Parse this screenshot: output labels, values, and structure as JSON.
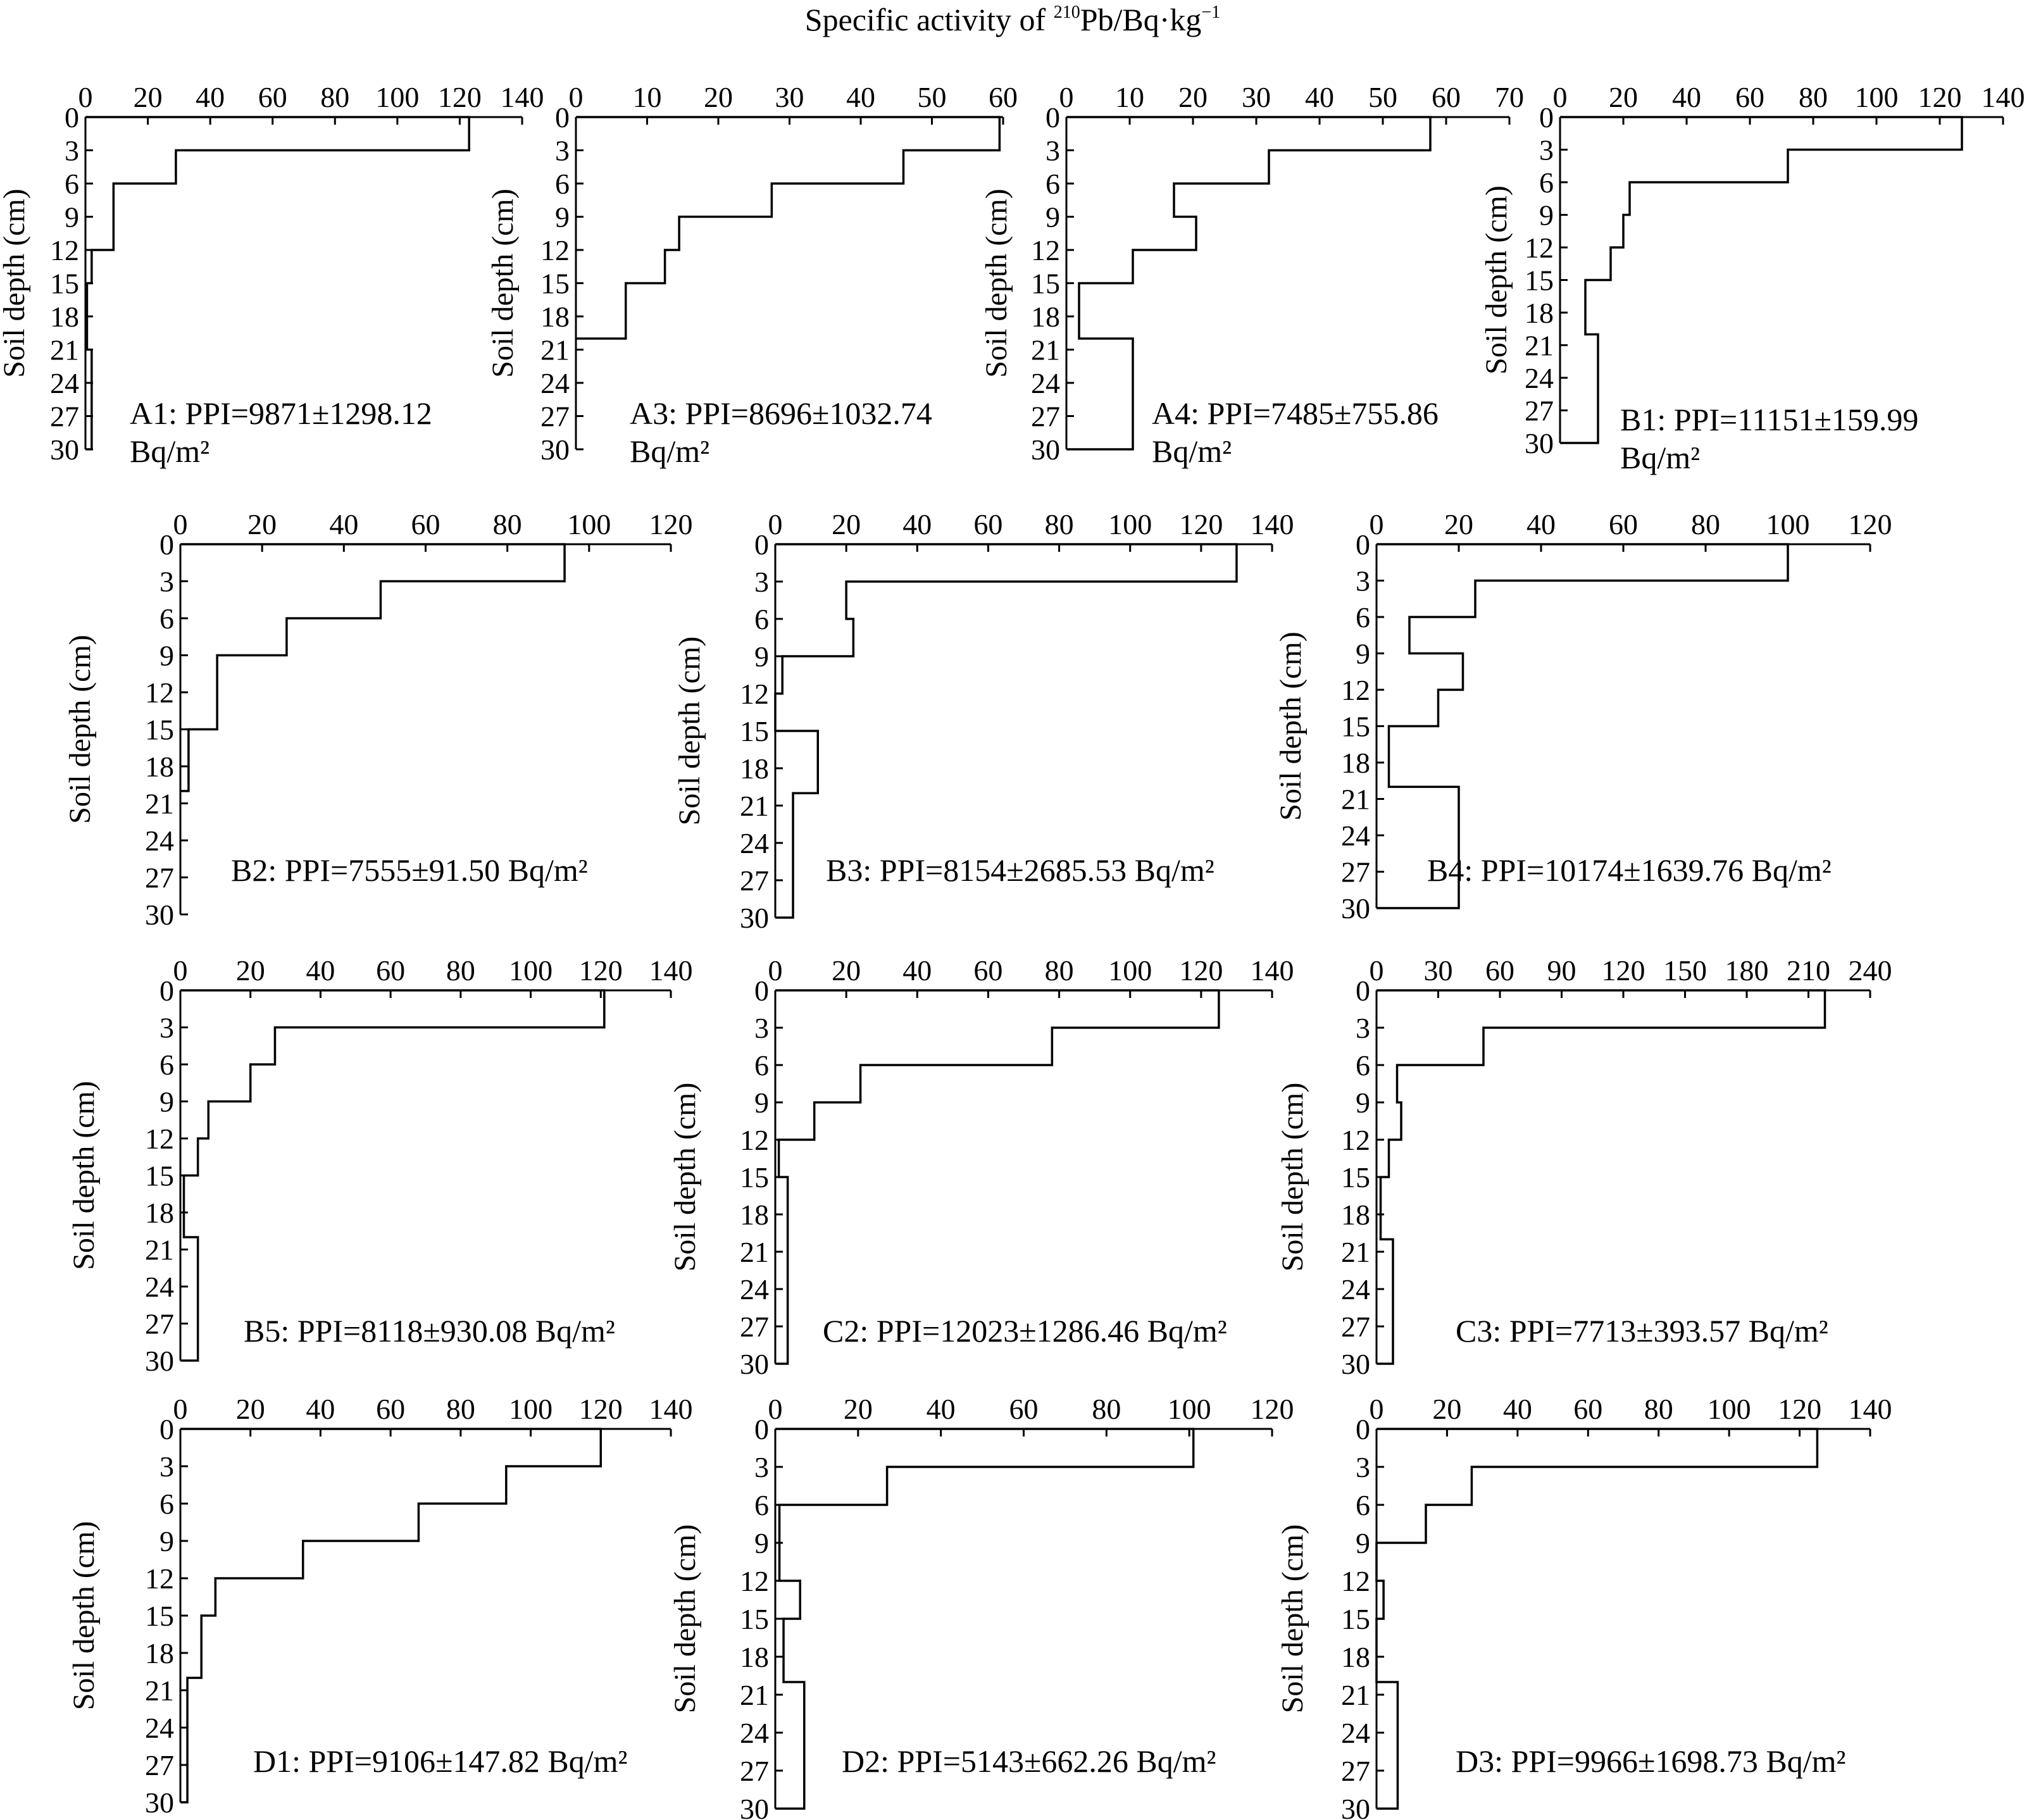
{
  "figure": {
    "title": {
      "prefix": "Specific activity of ",
      "sup1": "210",
      "mid": "Pb/Bq·kg",
      "sup2": "−1"
    }
  },
  "chart_data": [
    {
      "type": "line",
      "panel": "A1",
      "ylabel": "Soil depth (cm)",
      "xlim": [
        0,
        140
      ],
      "xticks": [
        0,
        20,
        40,
        60,
        80,
        100,
        120,
        140
      ],
      "ylim": [
        0,
        30
      ],
      "yticks": [
        0,
        3,
        6,
        9,
        12,
        15,
        18,
        21,
        24,
        27,
        30
      ],
      "annotation": [
        "A1: PPI=9871±1298.12",
        "Bq/m²"
      ],
      "layers": [
        {
          "top": 0,
          "bottom": 3,
          "value": 123
        },
        {
          "top": 3,
          "bottom": 6,
          "value": 29
        },
        {
          "top": 6,
          "bottom": 12,
          "value": 9
        },
        {
          "top": 12,
          "bottom": 15,
          "value": 2
        },
        {
          "top": 15,
          "bottom": 21,
          "value": 0.5
        },
        {
          "top": 21,
          "bottom": 30,
          "value": 2
        }
      ]
    },
    {
      "type": "line",
      "panel": "A3",
      "ylabel": "Soil depth (cm)",
      "xlim": [
        0,
        60
      ],
      "xticks": [
        0,
        10,
        20,
        30,
        40,
        50,
        60
      ],
      "ylim": [
        0,
        30
      ],
      "yticks": [
        0,
        3,
        6,
        9,
        12,
        15,
        18,
        21,
        24,
        27,
        30
      ],
      "annotation": [
        "A3: PPI=8696±1032.74",
        "Bq/m²"
      ],
      "layers": [
        {
          "top": 0,
          "bottom": 3,
          "value": 59.5
        },
        {
          "top": 3,
          "bottom": 6,
          "value": 46
        },
        {
          "top": 6,
          "bottom": 9,
          "value": 27.5
        },
        {
          "top": 9,
          "bottom": 12,
          "value": 14.5
        },
        {
          "top": 12,
          "bottom": 15,
          "value": 12.5
        },
        {
          "top": 15,
          "bottom": 20,
          "value": 7
        }
      ]
    },
    {
      "type": "line",
      "panel": "A4",
      "ylabel": "Soil depth (cm)",
      "xlim": [
        0,
        70
      ],
      "xticks": [
        0,
        10,
        20,
        30,
        40,
        50,
        60,
        70
      ],
      "ylim": [
        0,
        30
      ],
      "yticks": [
        0,
        3,
        6,
        9,
        12,
        15,
        18,
        21,
        24,
        27,
        30
      ],
      "annotation": [
        "A4: PPI=7485±755.86",
        "Bq/m²"
      ],
      "layers": [
        {
          "top": 0,
          "bottom": 3,
          "value": 57.5
        },
        {
          "top": 3,
          "bottom": 6,
          "value": 32
        },
        {
          "top": 6,
          "bottom": 9,
          "value": 17
        },
        {
          "top": 9,
          "bottom": 12,
          "value": 20.5
        },
        {
          "top": 12,
          "bottom": 15,
          "value": 10.5
        },
        {
          "top": 15,
          "bottom": 20,
          "value": 2
        },
        {
          "top": 20,
          "bottom": 30,
          "value": 10.5
        }
      ]
    },
    {
      "type": "line",
      "panel": "B1",
      "ylabel": "Soil depth (cm)",
      "xlim": [
        0,
        140
      ],
      "xticks": [
        0,
        20,
        40,
        60,
        80,
        100,
        120,
        140
      ],
      "ylim": [
        0,
        30
      ],
      "yticks": [
        0,
        3,
        6,
        9,
        12,
        15,
        18,
        21,
        24,
        27,
        30
      ],
      "annotation": [
        "B1: PPI=11151±159.99",
        "Bq/m²"
      ],
      "layers": [
        {
          "top": 0,
          "bottom": 3,
          "value": 127
        },
        {
          "top": 3,
          "bottom": 6,
          "value": 72
        },
        {
          "top": 6,
          "bottom": 9,
          "value": 22
        },
        {
          "top": 9,
          "bottom": 12,
          "value": 20
        },
        {
          "top": 12,
          "bottom": 15,
          "value": 16
        },
        {
          "top": 15,
          "bottom": 20,
          "value": 8
        },
        {
          "top": 20,
          "bottom": 30,
          "value": 12
        }
      ]
    },
    {
      "type": "line",
      "panel": "B2",
      "ylabel": "Soil depth (cm)",
      "xlim": [
        0,
        120
      ],
      "xticks": [
        0,
        20,
        40,
        60,
        80,
        100,
        120
      ],
      "ylim": [
        0,
        30
      ],
      "yticks": [
        0,
        3,
        6,
        9,
        12,
        15,
        18,
        21,
        24,
        27,
        30
      ],
      "annotation": [
        "B2: PPI=7555±91.50 Bq/m²"
      ],
      "layers": [
        {
          "top": 0,
          "bottom": 3,
          "value": 94
        },
        {
          "top": 3,
          "bottom": 6,
          "value": 49
        },
        {
          "top": 6,
          "bottom": 9,
          "value": 26
        },
        {
          "top": 9,
          "bottom": 15,
          "value": 9
        },
        {
          "top": 15,
          "bottom": 20,
          "value": 2
        }
      ]
    },
    {
      "type": "line",
      "panel": "B3",
      "ylabel": "Soil depth (cm)",
      "xlim": [
        0,
        140
      ],
      "xticks": [
        0,
        20,
        40,
        60,
        80,
        100,
        120,
        140
      ],
      "ylim": [
        0,
        30
      ],
      "yticks": [
        0,
        3,
        6,
        9,
        12,
        15,
        18,
        21,
        24,
        27,
        30
      ],
      "annotation": [
        "B3: PPI=8154±2685.53 Bq/m²"
      ],
      "layers": [
        {
          "top": 0,
          "bottom": 3,
          "value": 130
        },
        {
          "top": 3,
          "bottom": 6,
          "value": 20
        },
        {
          "top": 6,
          "bottom": 9,
          "value": 22
        },
        {
          "top": 9,
          "bottom": 12,
          "value": 2
        },
        {
          "top": 12,
          "bottom": 15,
          "value": 0
        },
        {
          "top": 15,
          "bottom": 20,
          "value": 12
        },
        {
          "top": 20,
          "bottom": 30,
          "value": 5
        }
      ]
    },
    {
      "type": "line",
      "panel": "B4",
      "ylabel": "Soil depth (cm)",
      "xlim": [
        0,
        120
      ],
      "xticks": [
        0,
        20,
        40,
        60,
        80,
        100,
        120
      ],
      "ylim": [
        0,
        30
      ],
      "yticks": [
        0,
        3,
        6,
        9,
        12,
        15,
        18,
        21,
        24,
        27,
        30
      ],
      "annotation": [
        "B4: PPI=10174±1639.76 Bq/m²"
      ],
      "layers": [
        {
          "top": 0,
          "bottom": 3,
          "value": 100
        },
        {
          "top": 3,
          "bottom": 6,
          "value": 24
        },
        {
          "top": 6,
          "bottom": 9,
          "value": 8
        },
        {
          "top": 9,
          "bottom": 12,
          "value": 21
        },
        {
          "top": 12,
          "bottom": 15,
          "value": 15
        },
        {
          "top": 15,
          "bottom": 20,
          "value": 3
        },
        {
          "top": 20,
          "bottom": 30,
          "value": 20
        }
      ]
    },
    {
      "type": "line",
      "panel": "B5",
      "ylabel": "Soil depth (cm)",
      "xlim": [
        0,
        140
      ],
      "xticks": [
        0,
        20,
        40,
        60,
        80,
        100,
        120,
        140
      ],
      "ylim": [
        0,
        30
      ],
      "yticks": [
        0,
        3,
        6,
        9,
        12,
        15,
        18,
        21,
        24,
        27,
        30
      ],
      "annotation": [
        "B5: PPI=8118±930.08 Bq/m²"
      ],
      "layers": [
        {
          "top": 0,
          "bottom": 3,
          "value": 121
        },
        {
          "top": 3,
          "bottom": 6,
          "value": 27
        },
        {
          "top": 6,
          "bottom": 9,
          "value": 20
        },
        {
          "top": 9,
          "bottom": 12,
          "value": 8
        },
        {
          "top": 12,
          "bottom": 15,
          "value": 5
        },
        {
          "top": 15,
          "bottom": 20,
          "value": 1
        },
        {
          "top": 20,
          "bottom": 30,
          "value": 5
        }
      ]
    },
    {
      "type": "line",
      "panel": "C2",
      "ylabel": "Soil depth (cm)",
      "xlim": [
        0,
        140
      ],
      "xticks": [
        0,
        20,
        40,
        60,
        80,
        100,
        120,
        140
      ],
      "ylim": [
        0,
        30
      ],
      "yticks": [
        0,
        3,
        6,
        9,
        12,
        15,
        18,
        21,
        24,
        27,
        30
      ],
      "annotation": [
        "C2: PPI=12023±1286.46 Bq/m²"
      ],
      "layers": [
        {
          "top": 0,
          "bottom": 3,
          "value": 125
        },
        {
          "top": 3,
          "bottom": 6,
          "value": 78
        },
        {
          "top": 6,
          "bottom": 9,
          "value": 24
        },
        {
          "top": 9,
          "bottom": 12,
          "value": 11
        },
        {
          "top": 12,
          "bottom": 15,
          "value": 1
        },
        {
          "top": 15,
          "bottom": 30,
          "value": 3.5
        }
      ]
    },
    {
      "type": "line",
      "panel": "C3",
      "ylabel": "Soil depth (cm)",
      "xlim": [
        0,
        240
      ],
      "xticks": [
        0,
        30,
        60,
        90,
        120,
        150,
        180,
        210,
        240
      ],
      "ylim": [
        0,
        30
      ],
      "yticks": [
        0,
        3,
        6,
        9,
        12,
        15,
        18,
        21,
        24,
        27,
        30
      ],
      "annotation": [
        "C3: PPI=7713±393.57 Bq/m²"
      ],
      "layers": [
        {
          "top": 0,
          "bottom": 3,
          "value": 218
        },
        {
          "top": 3,
          "bottom": 6,
          "value": 52
        },
        {
          "top": 6,
          "bottom": 9,
          "value": 10
        },
        {
          "top": 9,
          "bottom": 12,
          "value": 12
        },
        {
          "top": 12,
          "bottom": 15,
          "value": 6
        },
        {
          "top": 15,
          "bottom": 20,
          "value": 2
        },
        {
          "top": 20,
          "bottom": 30,
          "value": 8
        }
      ]
    },
    {
      "type": "line",
      "panel": "D1",
      "ylabel": "Soil depth (cm)",
      "xlim": [
        0,
        140
      ],
      "xticks": [
        0,
        20,
        40,
        60,
        80,
        100,
        120,
        140
      ],
      "ylim": [
        0,
        30
      ],
      "yticks": [
        0,
        3,
        6,
        9,
        12,
        15,
        18,
        21,
        24,
        27,
        30
      ],
      "annotation": [
        "D1: PPI=9106±147.82 Bq/m²"
      ],
      "layers": [
        {
          "top": 0,
          "bottom": 3,
          "value": 120
        },
        {
          "top": 3,
          "bottom": 6,
          "value": 93
        },
        {
          "top": 6,
          "bottom": 9,
          "value": 68
        },
        {
          "top": 9,
          "bottom": 12,
          "value": 35
        },
        {
          "top": 12,
          "bottom": 15,
          "value": 10
        },
        {
          "top": 15,
          "bottom": 20,
          "value": 6
        },
        {
          "top": 20,
          "bottom": 30,
          "value": 2
        }
      ]
    },
    {
      "type": "line",
      "panel": "D2",
      "ylabel": "Soil depth (cm)",
      "xlim": [
        0,
        120
      ],
      "xticks": [
        0,
        20,
        40,
        60,
        80,
        100,
        120
      ],
      "ylim": [
        0,
        30
      ],
      "yticks": [
        0,
        3,
        6,
        9,
        12,
        15,
        18,
        21,
        24,
        27,
        30
      ],
      "annotation": [
        "D2: PPI=5143±662.26 Bq/m²"
      ],
      "layers": [
        {
          "top": 0,
          "bottom": 3,
          "value": 101
        },
        {
          "top": 3,
          "bottom": 6,
          "value": 27
        },
        {
          "top": 6,
          "bottom": 12,
          "value": 1
        },
        {
          "top": 12,
          "bottom": 15,
          "value": 6
        },
        {
          "top": 15,
          "bottom": 20,
          "value": 2
        },
        {
          "top": 20,
          "bottom": 30,
          "value": 7
        }
      ]
    },
    {
      "type": "line",
      "panel": "D3",
      "ylabel": "Soil depth (cm)",
      "xlim": [
        0,
        140
      ],
      "xticks": [
        0,
        20,
        40,
        60,
        80,
        100,
        120,
        140
      ],
      "ylim": [
        0,
        30
      ],
      "yticks": [
        0,
        3,
        6,
        9,
        12,
        15,
        18,
        21,
        24,
        27,
        30
      ],
      "annotation": [
        "D3: PPI=9966±1698.73 Bq/m²"
      ],
      "layers": [
        {
          "top": 0,
          "bottom": 3,
          "value": 125
        },
        {
          "top": 3,
          "bottom": 6,
          "value": 27
        },
        {
          "top": 6,
          "bottom": 9,
          "value": 14
        },
        {
          "top": 9,
          "bottom": 12,
          "value": 0
        },
        {
          "top": 12,
          "bottom": 15,
          "value": 2
        },
        {
          "top": 15,
          "bottom": 20,
          "value": 0
        },
        {
          "top": 20,
          "bottom": 30,
          "value": 6
        }
      ]
    }
  ]
}
